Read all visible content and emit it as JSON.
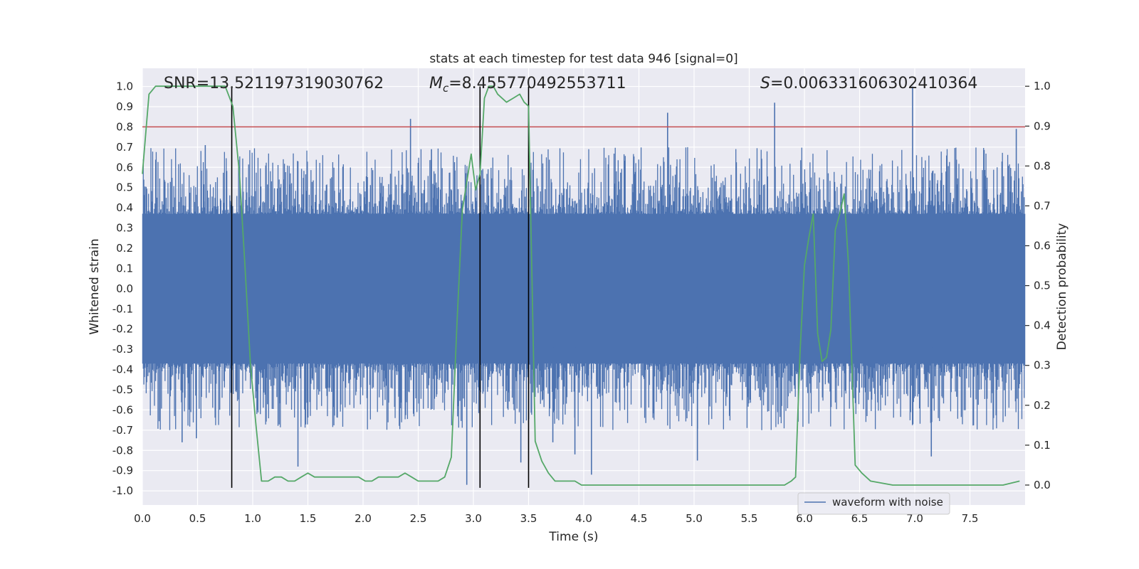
{
  "chart_data": {
    "type": "line",
    "title": "stats at each timestep for test data 946 [signal=0]",
    "xlabel": "Time (s)",
    "ylabel": "Whitened strain",
    "y2label": "Detection probability",
    "xlim": [
      0.0,
      8.0
    ],
    "ylim": [
      -1.07,
      1.09
    ],
    "y2lim": [
      -0.05,
      1.045
    ],
    "xticks": [
      "0.0",
      "0.5",
      "1.0",
      "1.5",
      "2.0",
      "2.5",
      "3.0",
      "3.5",
      "4.0",
      "4.5",
      "5.0",
      "5.5",
      "6.0",
      "6.5",
      "7.0",
      "7.5"
    ],
    "yticks": [
      "-1.0",
      "-0.9",
      "-0.8",
      "-0.7",
      "-0.6",
      "-0.5",
      "-0.4",
      "-0.3",
      "-0.2",
      "-0.1",
      "0.0",
      "0.1",
      "0.2",
      "0.3",
      "0.4",
      "0.5",
      "0.6",
      "0.7",
      "0.8",
      "0.9",
      "1.0"
    ],
    "y2ticks": [
      "0.0",
      "0.1",
      "0.2",
      "0.3",
      "0.4",
      "0.5",
      "0.6",
      "0.7",
      "0.8",
      "0.9",
      "1.0"
    ],
    "grid": true,
    "legend_placement": "lower-right",
    "annotations": {
      "snr": "SNR=13.521197319030762",
      "mc_symbol": "M",
      "mc_sub": "c",
      "mc_value": "=8.455770492553711",
      "s_symbol": "S",
      "s_value": "=0.006331606302410364"
    },
    "threshold": 0.8,
    "vlines": [
      0.81,
      3.06,
      3.5
    ],
    "series": [
      {
        "name": "waveform with noise",
        "axis": "left",
        "color": "#4c72b0",
        "style": "dense noise",
        "band": [
          -0.37,
          0.37
        ],
        "peaks": [
          {
            "t": 0.36,
            "v": -0.76
          },
          {
            "t": 0.49,
            "v": -0.74
          },
          {
            "t": 0.57,
            "v": 0.71
          },
          {
            "t": 1.41,
            "v": -0.88
          },
          {
            "t": 2.43,
            "v": 0.84
          },
          {
            "t": 2.62,
            "v": 0.69
          },
          {
            "t": 2.94,
            "v": -0.97
          },
          {
            "t": 3.43,
            "v": -0.86
          },
          {
            "t": 3.72,
            "v": -0.76
          },
          {
            "t": 3.92,
            "v": -0.82
          },
          {
            "t": 4.07,
            "v": -0.92
          },
          {
            "t": 4.76,
            "v": 0.87
          },
          {
            "t": 5.03,
            "v": -0.85
          },
          {
            "t": 5.73,
            "v": 0.92
          },
          {
            "t": 6.98,
            "v": 1.0
          },
          {
            "t": 7.15,
            "v": -0.83
          },
          {
            "t": 7.92,
            "v": 0.79
          }
        ]
      },
      {
        "name": "",
        "axis": "right",
        "color": "#55a868",
        "x": [
          0.0,
          0.06,
          0.12,
          0.2,
          0.3,
          0.4,
          0.5,
          0.6,
          0.7,
          0.75,
          0.82,
          0.88,
          0.93,
          0.98,
          1.03,
          1.08,
          1.14,
          1.2,
          1.26,
          1.32,
          1.38,
          1.44,
          1.5,
          1.56,
          1.62,
          1.7,
          1.78,
          1.84,
          1.9,
          1.96,
          2.02,
          2.08,
          2.14,
          2.2,
          2.26,
          2.32,
          2.38,
          2.44,
          2.5,
          2.56,
          2.62,
          2.68,
          2.74,
          2.8,
          2.85,
          2.9,
          2.94,
          2.98,
          3.02,
          3.06,
          3.1,
          3.14,
          3.18,
          3.22,
          3.26,
          3.3,
          3.36,
          3.42,
          3.46,
          3.5,
          3.56,
          3.62,
          3.68,
          3.74,
          3.8,
          3.86,
          3.92,
          3.98,
          4.05,
          4.2,
          4.4,
          4.6,
          4.8,
          5.0,
          5.2,
          5.4,
          5.6,
          5.75,
          5.82,
          5.88,
          5.92,
          5.96,
          6.0,
          6.04,
          6.08,
          6.12,
          6.16,
          6.2,
          6.24,
          6.28,
          6.32,
          6.36,
          6.4,
          6.46,
          6.52,
          6.6,
          6.8,
          7.0,
          7.2,
          7.4,
          7.6,
          7.8,
          7.95
        ],
        "values": [
          0.78,
          0.98,
          1.0,
          1.0,
          1.0,
          1.0,
          1.0,
          1.0,
          1.0,
          1.0,
          0.95,
          0.78,
          0.55,
          0.3,
          0.15,
          0.01,
          0.01,
          0.02,
          0.02,
          0.01,
          0.01,
          0.02,
          0.03,
          0.02,
          0.02,
          0.02,
          0.02,
          0.02,
          0.02,
          0.02,
          0.01,
          0.01,
          0.02,
          0.02,
          0.02,
          0.02,
          0.03,
          0.02,
          0.01,
          0.01,
          0.01,
          0.01,
          0.02,
          0.07,
          0.4,
          0.69,
          0.76,
          0.83,
          0.74,
          0.78,
          0.97,
          1.0,
          1.0,
          0.98,
          0.97,
          0.96,
          0.97,
          0.98,
          0.96,
          0.95,
          0.11,
          0.06,
          0.03,
          0.01,
          0.01,
          0.01,
          0.01,
          0.0,
          0.0,
          0.0,
          0.0,
          0.0,
          0.0,
          0.0,
          0.0,
          0.0,
          0.0,
          0.0,
          0.0,
          0.01,
          0.02,
          0.33,
          0.55,
          0.62,
          0.68,
          0.38,
          0.31,
          0.32,
          0.39,
          0.64,
          0.68,
          0.73,
          0.55,
          0.05,
          0.03,
          0.01,
          0.0,
          0.0,
          0.0,
          0.0,
          0.0,
          0.0,
          0.01
        ]
      }
    ]
  }
}
